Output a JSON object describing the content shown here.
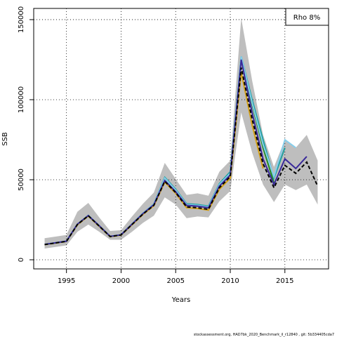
{
  "chart_data": {
    "type": "line",
    "x": [
      1993,
      1994,
      1995,
      1996,
      1997,
      1998,
      1999,
      2000,
      2001,
      2002,
      2003,
      2004,
      2005,
      2006,
      2007,
      2008,
      2009,
      2010,
      2011,
      2012,
      2013,
      2014,
      2015,
      2016,
      2017,
      2018
    ],
    "band": {
      "color": "#bebebe",
      "upper": [
        13500,
        14500,
        15500,
        30000,
        35500,
        26500,
        18000,
        18500,
        27000,
        35000,
        42000,
        60500,
        50500,
        40500,
        41500,
        40000,
        55000,
        62000,
        151000,
        112000,
        78000,
        58000,
        75000,
        70000,
        78000,
        62000
      ],
      "lower": [
        7000,
        8000,
        9000,
        17500,
        22000,
        17500,
        12500,
        12500,
        17500,
        23000,
        27500,
        39000,
        34500,
        26000,
        27000,
        26500,
        36500,
        43000,
        92000,
        67000,
        47000,
        36000,
        47000,
        43500,
        47000,
        34500
      ]
    },
    "series": [
      {
        "color": "#d4a017",
        "values": [
          9400,
          10400,
          11400,
          21800,
          27300,
          20800,
          14400,
          15400,
          21800,
          28300,
          33700,
          48500,
          41500,
          32500,
          32000,
          31000,
          44000,
          51000,
          117000,
          84000,
          57000,
          null,
          null,
          null,
          null,
          null
        ]
      },
      {
        "color": "#228b22",
        "values": [
          9600,
          10600,
          11600,
          22200,
          27700,
          21200,
          14600,
          15600,
          22300,
          29000,
          34800,
          51000,
          43500,
          34500,
          34000,
          33000,
          47000,
          54000,
          126000,
          97000,
          70000,
          48000,
          null,
          null,
          null,
          null
        ]
      },
      {
        "color": "#20a0a0",
        "values": [
          9600,
          10600,
          11600,
          22200,
          27700,
          21200,
          14600,
          15600,
          22300,
          29000,
          34800,
          51500,
          44000,
          35000,
          34500,
          33500,
          47500,
          55000,
          127000,
          100000,
          75000,
          51000,
          70000,
          null,
          null,
          null
        ]
      },
      {
        "color": "#87ceeb",
        "values": [
          9600,
          10600,
          11600,
          22200,
          27700,
          21200,
          14600,
          15600,
          22300,
          29000,
          34800,
          51000,
          43500,
          34500,
          34000,
          33000,
          47000,
          54000,
          127000,
          98000,
          72000,
          52000,
          75000,
          70000,
          null,
          null
        ]
      },
      {
        "color": "#3a2a9a",
        "values": [
          9600,
          10600,
          11600,
          22200,
          27600,
          21200,
          14600,
          15600,
          22200,
          28800,
          34400,
          49500,
          42500,
          34000,
          33500,
          32500,
          46000,
          53000,
          125000,
          92000,
          63000,
          47000,
          63000,
          57000,
          64500,
          null
        ]
      },
      {
        "color": "#000000",
        "linestyle": "dashed",
        "values": [
          9500,
          10500,
          11500,
          22000,
          27500,
          21000,
          14500,
          15500,
          22000,
          28500,
          34000,
          49000,
          42000,
          33000,
          32500,
          31500,
          45000,
          52000,
          120000,
          88000,
          60000,
          45000,
          59000,
          54000,
          61000,
          46000
        ]
      }
    ],
    "xlim": [
      1992,
      2019
    ],
    "xticks": [
      1995,
      2000,
      2005,
      2010,
      2015
    ],
    "ylim": [
      -5700,
      157000
    ],
    "yticks": [
      0,
      50000,
      100000,
      150000
    ],
    "grid": true,
    "xlabel": "Years",
    "ylabel": "SSB",
    "annotation": "Rho 8%",
    "footer": "stockassessment.org, HAD7bk_2020_Benchmark_il_r12840 , git: 5b334405cda7"
  }
}
